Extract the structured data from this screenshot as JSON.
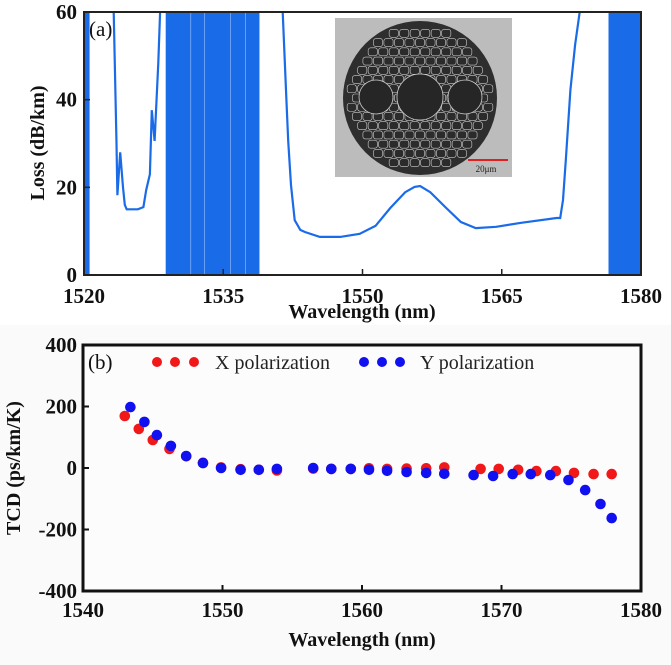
{
  "chart_data": [
    {
      "id": "a",
      "type": "line",
      "panel_label": "(a)",
      "title": "",
      "xlabel": "Wavelength (nm)",
      "ylabel": "Loss (dB/km)",
      "xlim": [
        1520,
        1580
      ],
      "ylim": [
        0,
        60
      ],
      "xticks": [
        "1520",
        "1535",
        "1550",
        "1565",
        "1580"
      ],
      "yticks": [
        "0",
        "20",
        "40",
        "60"
      ],
      "grid": false,
      "line_color": "#1a6be8",
      "series": [
        {
          "name": "Loss",
          "x": [
            1523.2,
            1523.5,
            1523.6,
            1523.9,
            1524.2,
            1524.4,
            1524.6,
            1525.2,
            1525.8,
            1526.4,
            1526.7,
            1527.1,
            1527.3,
            1527.6,
            1528.0,
            1528.2,
            1541.4,
            1541.8,
            1542.0,
            1542.3,
            1542.7,
            1543.3,
            1543.8,
            1545.4,
            1547.6,
            1549.7,
            1551.4,
            1553.0,
            1554.6,
            1555.6,
            1556.2,
            1557.3,
            1559.0,
            1560.6,
            1562.2,
            1564.4,
            1567.1,
            1570.9,
            1571.3,
            1571.6,
            1571.9,
            1572.4,
            1572.9,
            1573.4
          ],
          "y": [
            60,
            30,
            18.2,
            28,
            20,
            16,
            15,
            15,
            15,
            15.5,
            19.4,
            23,
            37.6,
            30.6,
            48.4,
            60,
            60,
            40,
            30.6,
            20.5,
            12.5,
            10.3,
            9.8,
            8.7,
            8.7,
            9.4,
            11.2,
            15.3,
            18.9,
            20.1,
            20.3,
            18.9,
            15.3,
            12.1,
            10.7,
            11.0,
            11.9,
            13.0,
            13.0,
            17.1,
            26.2,
            42.2,
            52.5,
            60
          ]
        }
      ],
      "noise_bands": [
        {
          "x_range": [
            1520,
            1520.6
          ],
          "y_range": [
            0,
            60
          ]
        },
        {
          "x_range": [
            1528.8,
            1538.9
          ],
          "y_range": [
            0,
            60
          ]
        },
        {
          "x_range": [
            1576.5,
            1580
          ],
          "y_range": [
            0,
            60
          ]
        }
      ],
      "inset": {
        "description": "fiber cross-section micrograph",
        "scale_bar_label": "20μm",
        "scale_bar_color": "#e02020"
      }
    },
    {
      "id": "b",
      "type": "scatter",
      "panel_label": "(b)",
      "title": "",
      "xlabel": "Wavelength (nm)",
      "ylabel": "TCD (ps/km/K)",
      "xlim": [
        1540,
        1580
      ],
      "ylim": [
        -400,
        400
      ],
      "xticks": [
        "1540",
        "1550",
        "1560",
        "1570",
        "1580"
      ],
      "yticks": [
        "-400",
        "-200",
        "0",
        "200",
        "400"
      ],
      "grid": false,
      "legend": {
        "placement": "top"
      },
      "series": [
        {
          "name": "X polarization",
          "color": "#f01818",
          "x": [
            1543.0,
            1544.0,
            1545.0,
            1546.2,
            1547.4,
            1548.6,
            1549.9,
            1551.3,
            1552.6,
            1553.9,
            1556.5,
            1557.8,
            1559.2,
            1560.5,
            1561.8,
            1563.2,
            1564.6,
            1565.9,
            1568.5,
            1569.8,
            1571.2,
            1572.5,
            1573.9,
            1575.2,
            1576.6,
            1577.9
          ],
          "y": [
            169,
            127,
            91,
            62,
            38,
            17,
            2,
            -4,
            -6,
            -8,
            -2,
            -3,
            -3,
            -1,
            -3,
            -2,
            -1,
            2,
            -3,
            -3,
            -6,
            -10,
            -10,
            -16,
            -20,
            -20
          ]
        },
        {
          "name": "Y polarization",
          "color": "#1010f0",
          "x": [
            1543.4,
            1544.4,
            1545.3,
            1546.3,
            1547.4,
            1548.6,
            1549.9,
            1551.3,
            1552.6,
            1553.9,
            1556.5,
            1557.8,
            1559.2,
            1560.5,
            1561.8,
            1563.2,
            1564.6,
            1565.9,
            1568.0,
            1569.4,
            1570.8,
            1572.1,
            1573.5,
            1574.8,
            1576.0,
            1577.1,
            1577.9
          ],
          "y": [
            198,
            150,
            107,
            72,
            39,
            16,
            0,
            -6,
            -6,
            -3,
            0,
            -3,
            -3,
            -6,
            -9,
            -13,
            -16,
            -19,
            -23,
            -26,
            -20,
            -20,
            -23,
            -39,
            -72,
            -117,
            -163
          ]
        }
      ]
    }
  ]
}
